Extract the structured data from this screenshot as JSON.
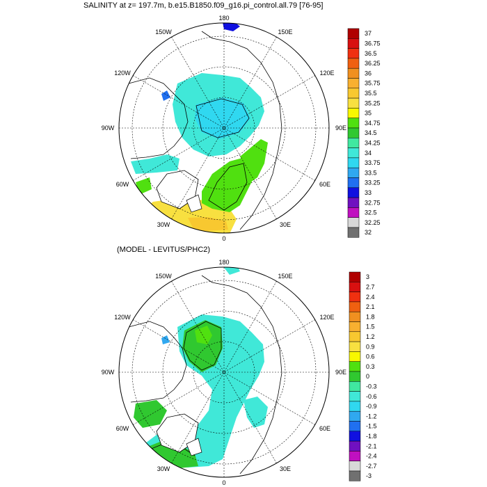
{
  "top_panel": {
    "title": "SALINITY at z= 197.7m, b.e15.B1850.f09_g16.pi_control.all.79 [76-95]",
    "lon_labels": [
      "180",
      "150E",
      "120E",
      "90E",
      "60E",
      "30E",
      "0",
      "30W",
      "60W",
      "90W",
      "120W",
      "150W"
    ],
    "colorbar": {
      "labels": [
        "37",
        "36.75",
        "36.5",
        "36.25",
        "36",
        "35.75",
        "35.5",
        "35.25",
        "35",
        "34.75",
        "34.5",
        "34.25",
        "34",
        "33.75",
        "33.5",
        "33.25",
        "33",
        "32.75",
        "32.5",
        "32.25",
        "32"
      ],
      "colors": [
        "#b00000",
        "#d81010",
        "#f03010",
        "#f06010",
        "#f09020",
        "#f8b030",
        "#f8c830",
        "#f8e040",
        "#f8f800",
        "#50e010",
        "#30c830",
        "#40e8a0",
        "#40e8d8",
        "#30d8f0",
        "#30a8f0",
        "#2070f0",
        "#1010e0",
        "#7010c0",
        "#c010c0",
        "#d8d8d8",
        "#707070"
      ]
    }
  },
  "bottom_panel": {
    "title": "(MODEL - LEVITUS/PHC2)",
    "lon_labels": [
      "180",
      "150E",
      "120E",
      "90E",
      "60E",
      "30E",
      "0",
      "30W",
      "60W",
      "90W",
      "120W",
      "150W"
    ],
    "colorbar": {
      "labels": [
        "3",
        "2.7",
        "2.4",
        "2.1",
        "1.8",
        "1.5",
        "1.2",
        "0.9",
        "0.6",
        "0.3",
        "0",
        "-0.3",
        "-0.6",
        "-0.9",
        "-1.2",
        "-1.5",
        "-1.8",
        "-2.1",
        "-2.4",
        "-2.7",
        "-3"
      ],
      "colors": [
        "#b00000",
        "#d81010",
        "#f03010",
        "#f06010",
        "#f09020",
        "#f8b030",
        "#f8c830",
        "#f8e040",
        "#f8f800",
        "#50e010",
        "#30c830",
        "#40e8a0",
        "#40e8d8",
        "#30d8f0",
        "#30a8f0",
        "#2070f0",
        "#1010e0",
        "#7010c0",
        "#c010c0",
        "#d8d8d8",
        "#707070"
      ]
    }
  },
  "colors": {
    "land_outline": "#000000",
    "ocean_missing": "#ffffff"
  }
}
